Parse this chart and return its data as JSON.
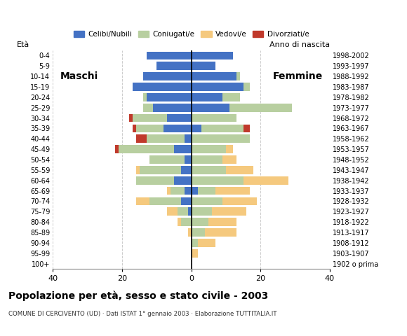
{
  "age_groups": [
    "100+",
    "95-99",
    "90-94",
    "85-89",
    "80-84",
    "75-79",
    "70-74",
    "65-69",
    "60-64",
    "55-59",
    "50-54",
    "45-49",
    "40-44",
    "35-39",
    "30-34",
    "25-29",
    "20-24",
    "15-19",
    "10-14",
    "5-9",
    "0-4"
  ],
  "birth_years": [
    "1902 o prima",
    "1903-1907",
    "1908-1912",
    "1913-1917",
    "1918-1922",
    "1923-1927",
    "1928-1932",
    "1933-1937",
    "1938-1942",
    "1943-1947",
    "1948-1952",
    "1953-1957",
    "1958-1962",
    "1963-1967",
    "1968-1972",
    "1973-1977",
    "1978-1982",
    "1983-1987",
    "1988-1992",
    "1993-1997",
    "1998-2002"
  ],
  "colors": {
    "celibi": "#4472c4",
    "coniugati": "#b8cfa0",
    "vedovi": "#f5c97e",
    "divorziati": "#c0392b"
  },
  "males": {
    "celibi": [
      0,
      0,
      0,
      0,
      0,
      1,
      3,
      2,
      5,
      3,
      2,
      5,
      2,
      8,
      7,
      11,
      13,
      17,
      14,
      10,
      13
    ],
    "coniugati": [
      0,
      0,
      0,
      0,
      3,
      3,
      9,
      4,
      11,
      12,
      10,
      16,
      11,
      8,
      10,
      3,
      1,
      0,
      0,
      0,
      0
    ],
    "vedovi": [
      0,
      0,
      0,
      1,
      1,
      3,
      4,
      1,
      0,
      1,
      0,
      0,
      0,
      0,
      0,
      0,
      0,
      0,
      0,
      0,
      0
    ],
    "divorziati": [
      0,
      0,
      0,
      0,
      0,
      0,
      0,
      0,
      0,
      0,
      0,
      1,
      3,
      1,
      1,
      0,
      0,
      0,
      0,
      0,
      0
    ]
  },
  "females": {
    "celibi": [
      0,
      0,
      0,
      0,
      0,
      0,
      0,
      2,
      0,
      0,
      0,
      0,
      0,
      3,
      0,
      11,
      9,
      15,
      13,
      7,
      12
    ],
    "coniugati": [
      0,
      0,
      2,
      4,
      5,
      6,
      9,
      5,
      15,
      10,
      9,
      10,
      17,
      12,
      13,
      18,
      5,
      2,
      1,
      0,
      0
    ],
    "vedovi": [
      0,
      2,
      5,
      9,
      8,
      10,
      10,
      10,
      13,
      8,
      4,
      2,
      0,
      0,
      0,
      0,
      0,
      0,
      0,
      0,
      0
    ],
    "divorziati": [
      0,
      0,
      0,
      0,
      0,
      0,
      0,
      0,
      0,
      0,
      0,
      0,
      0,
      2,
      0,
      0,
      0,
      0,
      0,
      0,
      0
    ]
  },
  "title": "Popolazione per età, sesso e stato civile - 2003",
  "subtitle": "COMUNE DI CERCIVENTO (UD) · Dati ISTAT 1° gennaio 2003 · Elaborazione TUTTITALIA.IT",
  "xlabel_left": "Maschi",
  "xlabel_right": "Femmine",
  "ylabel_left": "Età",
  "ylabel_right": "Anno di nascita",
  "xlim": 40,
  "legend_labels": [
    "Celibi/Nubili",
    "Coniugati/e",
    "Vedovi/e",
    "Divorziati/e"
  ]
}
